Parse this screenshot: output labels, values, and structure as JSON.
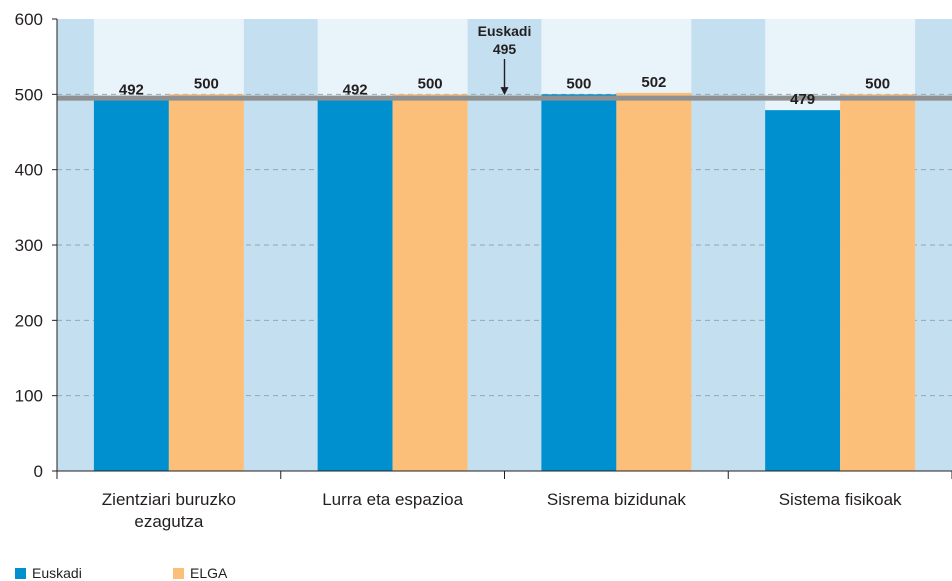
{
  "chart_data": {
    "type": "bar",
    "categories": [
      [
        "Zientziari buruzko",
        "ezagutza"
      ],
      [
        "Lurra eta espazioa"
      ],
      [
        "Sisrema bizidunak"
      ],
      [
        "Sistema fisikoak"
      ]
    ],
    "series": [
      {
        "name": "Euskadi",
        "values": [
          492,
          492,
          500,
          479
        ],
        "labels": [
          "492",
          "492",
          "500",
          "479"
        ],
        "color": "#0090cf"
      },
      {
        "name": "ELGA",
        "values": [
          500,
          500,
          502,
          500
        ],
        "labels": [
          "500",
          "500",
          "502",
          "500"
        ],
        "color": "#fcbf7a"
      }
    ],
    "ylim": [
      0,
      600
    ],
    "yticks": [
      "0",
      "100",
      "200",
      "300",
      "400",
      "500",
      "600"
    ],
    "grid": true,
    "reference_line": {
      "value": 495,
      "label": "Euskadi",
      "value_label": "495",
      "color": "#8e9091"
    },
    "plot_background": "#c3dff0",
    "column_band_color": "#e9f3fa",
    "legend_position": "bottom-left"
  }
}
